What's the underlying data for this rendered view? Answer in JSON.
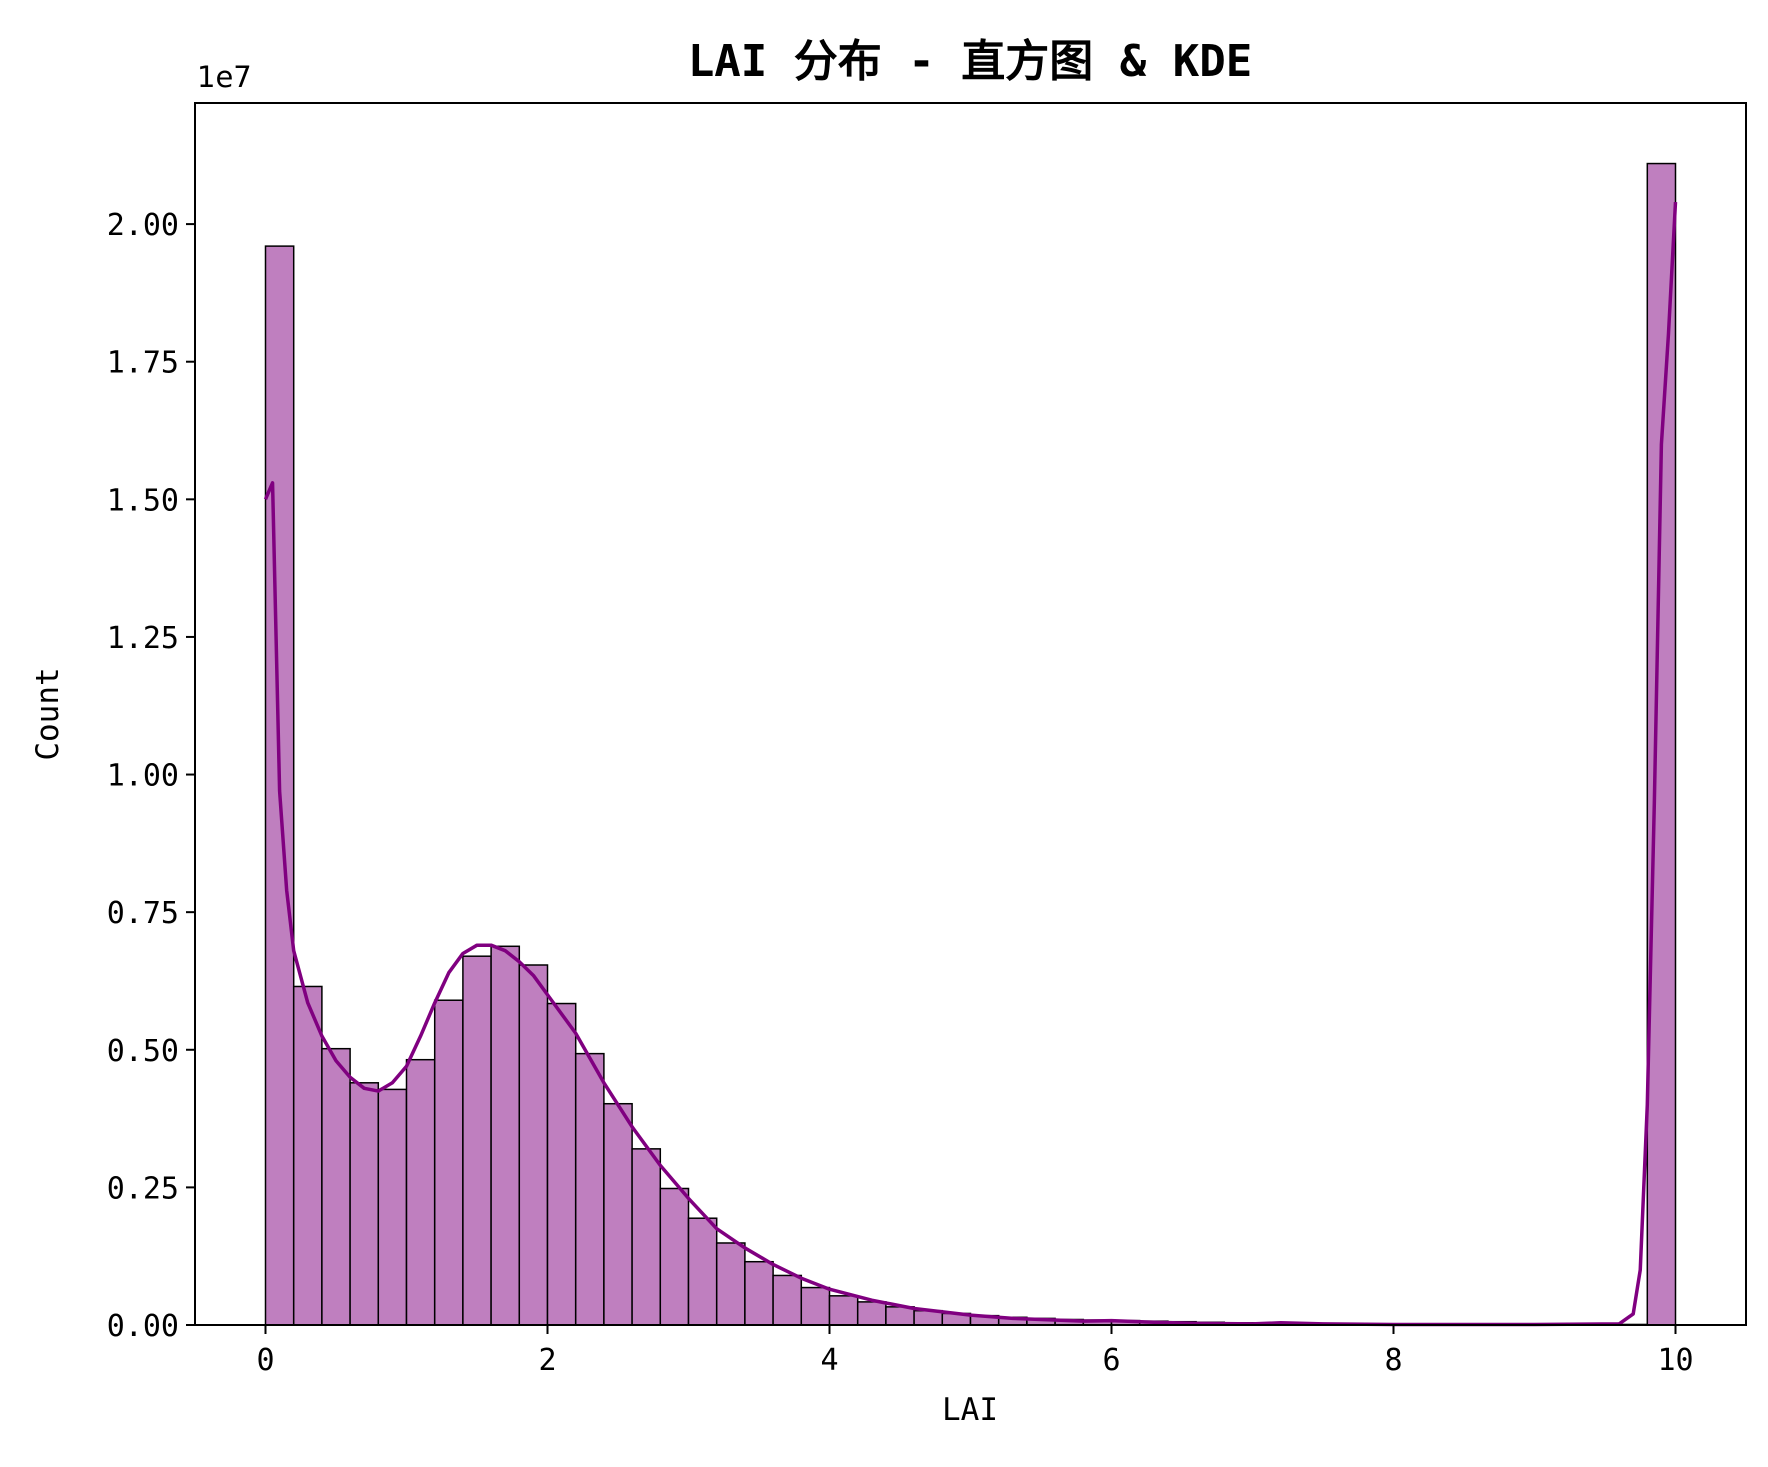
{
  "chart_data": {
    "type": "bar",
    "title": "LAI 分布 - 直方图 & KDE",
    "xlabel": "LAI",
    "ylabel": "Count",
    "y_offset_text": "1e7",
    "xlim": [
      -0.5,
      10.5
    ],
    "ylim": [
      0,
      2.22
    ],
    "y_multiplier": 10000000,
    "x_ticks": [
      0,
      2,
      4,
      6,
      8,
      10
    ],
    "x_tick_labels": [
      "0",
      "2",
      "4",
      "6",
      "8",
      "10"
    ],
    "y_ticks": [
      0,
      0.25,
      0.5,
      0.75,
      1.0,
      1.25,
      1.5,
      1.75,
      2.0
    ],
    "y_tick_labels": [
      "0.00",
      "0.25",
      "0.50",
      "0.75",
      "1.00",
      "1.25",
      "1.50",
      "1.75",
      "2.00"
    ],
    "bin_edges_start": 0,
    "bin_width": 0.2,
    "bins_y": [
      1.96,
      0.615,
      0.502,
      0.44,
      0.428,
      0.482,
      0.59,
      0.67,
      0.688,
      0.654,
      0.584,
      0.493,
      0.402,
      0.32,
      0.248,
      0.194,
      0.149,
      0.115,
      0.09,
      0.068,
      0.053,
      0.042,
      0.033,
      0.026,
      0.021,
      0.017,
      0.014,
      0.012,
      0.01,
      0.009,
      0.008,
      0.007,
      0.006,
      0.005,
      0.004,
      0.004,
      0.003,
      0.003,
      0.002,
      0.002,
      0.002,
      0.002,
      0.001,
      0.001,
      0.001,
      0.001,
      0.001,
      0.001,
      0.001,
      2.11
    ],
    "kde": {
      "x": [
        0,
        0.05,
        0.1,
        0.15,
        0.2,
        0.3,
        0.4,
        0.5,
        0.6,
        0.7,
        0.8,
        0.9,
        1.0,
        1.1,
        1.2,
        1.3,
        1.4,
        1.5,
        1.6,
        1.7,
        1.8,
        1.9,
        2.0,
        2.2,
        2.4,
        2.6,
        2.8,
        3.0,
        3.2,
        3.4,
        3.6,
        3.8,
        4.0,
        4.3,
        4.6,
        5.0,
        5.3,
        5.5,
        5.8,
        6.0,
        6.3,
        6.6,
        7.0,
        7.2,
        7.5,
        8.0,
        9.0,
        9.6,
        9.7,
        9.75,
        9.8,
        9.85,
        9.9,
        9.95,
        10.0
      ],
      "y": [
        1.5,
        1.53,
        0.97,
        0.79,
        0.68,
        0.585,
        0.525,
        0.48,
        0.45,
        0.43,
        0.425,
        0.44,
        0.47,
        0.525,
        0.585,
        0.64,
        0.675,
        0.69,
        0.69,
        0.68,
        0.66,
        0.635,
        0.6,
        0.53,
        0.44,
        0.36,
        0.29,
        0.23,
        0.175,
        0.14,
        0.11,
        0.085,
        0.065,
        0.045,
        0.03,
        0.018,
        0.012,
        0.01,
        0.007,
        0.008,
        0.005,
        0.003,
        0.002,
        0.004,
        0.002,
        0.001,
        0.001,
        0.002,
        0.02,
        0.1,
        0.4,
        0.95,
        1.6,
        1.8,
        2.04
      ]
    },
    "colors": {
      "bar_fill": "#bf7fbf",
      "bar_edge": "#000000",
      "kde_line": "#800080",
      "axes": "#000000"
    },
    "grid": false,
    "legend": "none"
  }
}
